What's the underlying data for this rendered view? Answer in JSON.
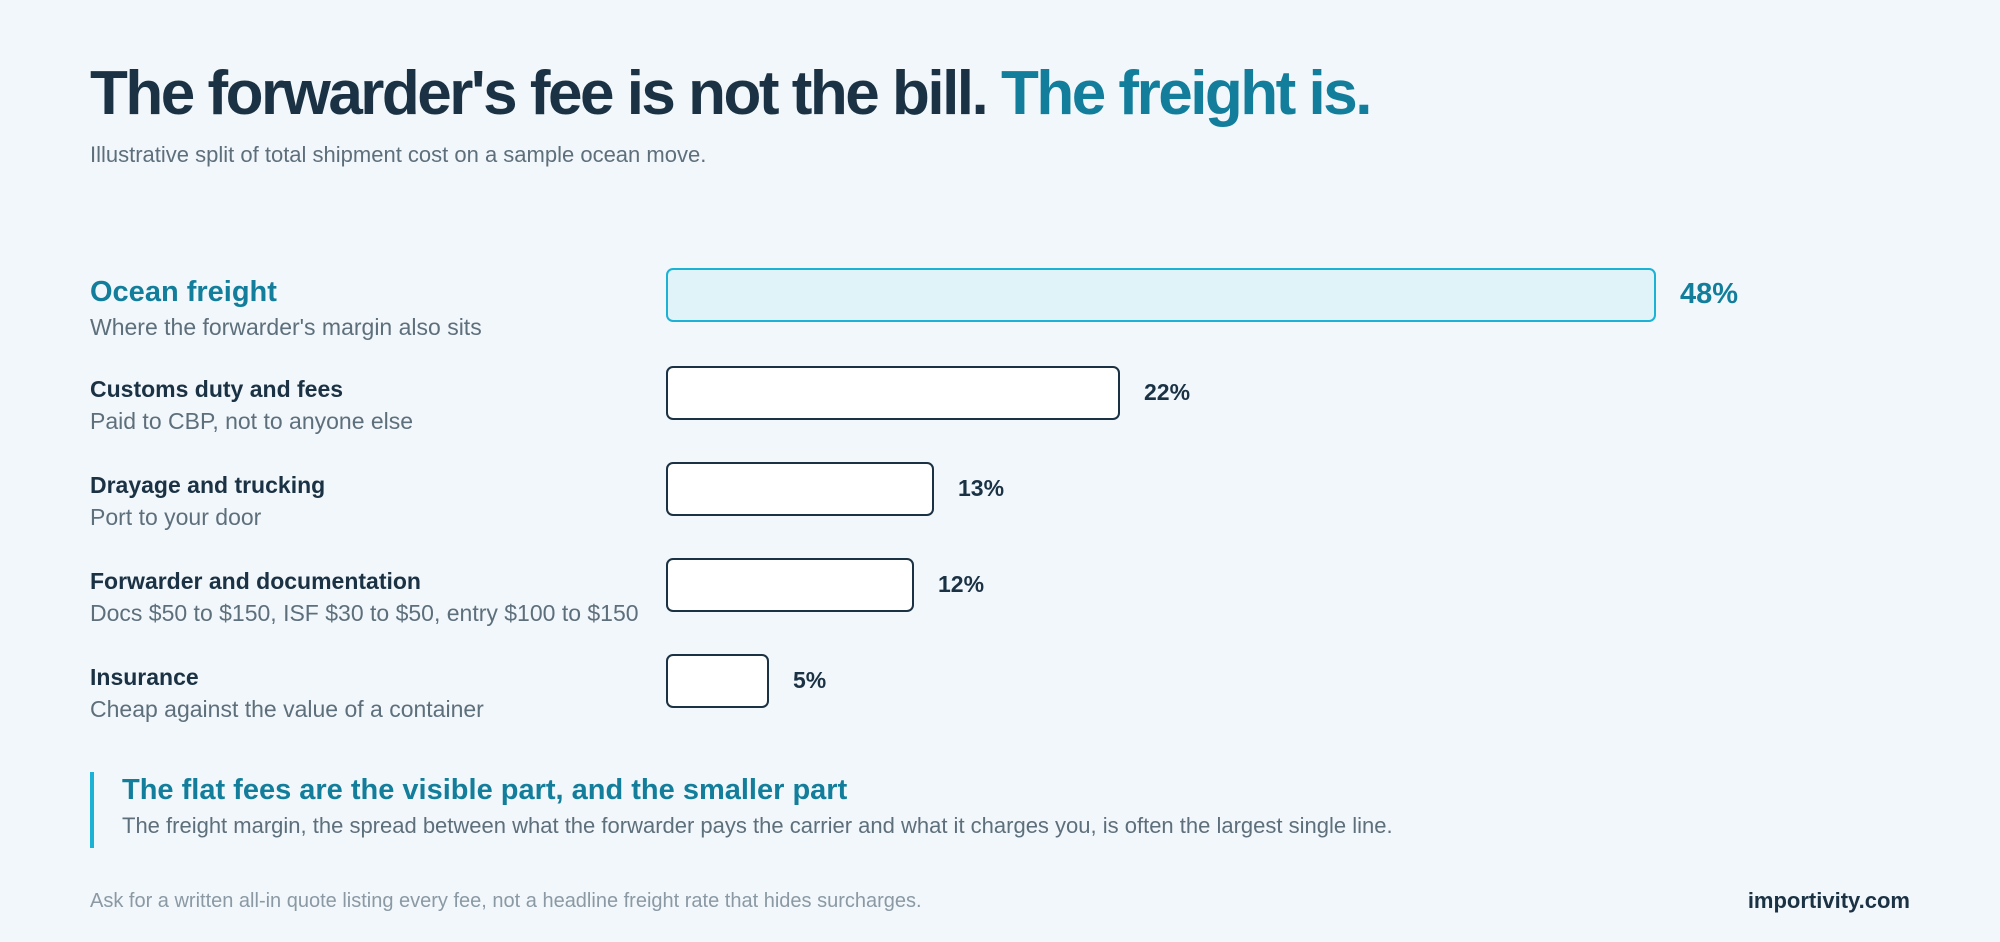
{
  "headline": {
    "main": "The forwarder's fee is not the bill.",
    "accent": "The freight is."
  },
  "subtitle": "Illustrative split of total shipment cost on a sample ocean move.",
  "chart_data": {
    "type": "bar",
    "orientation": "horizontal",
    "unit": "%",
    "categories": [
      "Ocean freight",
      "Customs duty and fees",
      "Drayage and trucking",
      "Forwarder and documentation",
      "Insurance"
    ],
    "notes": [
      "Where the forwarder's margin also sits",
      "Paid to CBP, not to anyone else",
      "Port to your door",
      "Docs $50 to $150, ISF $30 to $50, entry $100 to $150",
      "Cheap against the value of a container"
    ],
    "values": [
      48,
      22,
      13,
      12,
      5
    ],
    "value_labels": [
      "48%",
      "22%",
      "13%",
      "12%",
      "5%"
    ],
    "highlighted_category": "Ocean freight"
  },
  "callout": {
    "title": "The flat fees are the visible part, and the smaller part",
    "text": "The freight margin, the spread between what the forwarder pays the carrier and what it charges you, is often the largest single line."
  },
  "footnote": "Ask for a written all-in quote listing every fee, not a headline freight rate that hides surcharges.",
  "brand": "importivity.com",
  "colors": {
    "ink": "#1b3245",
    "accent": "#127e9c",
    "highlight_border": "#1cb2d6",
    "highlight_fill": "#dff3f8",
    "background": "#f1f7fa"
  }
}
